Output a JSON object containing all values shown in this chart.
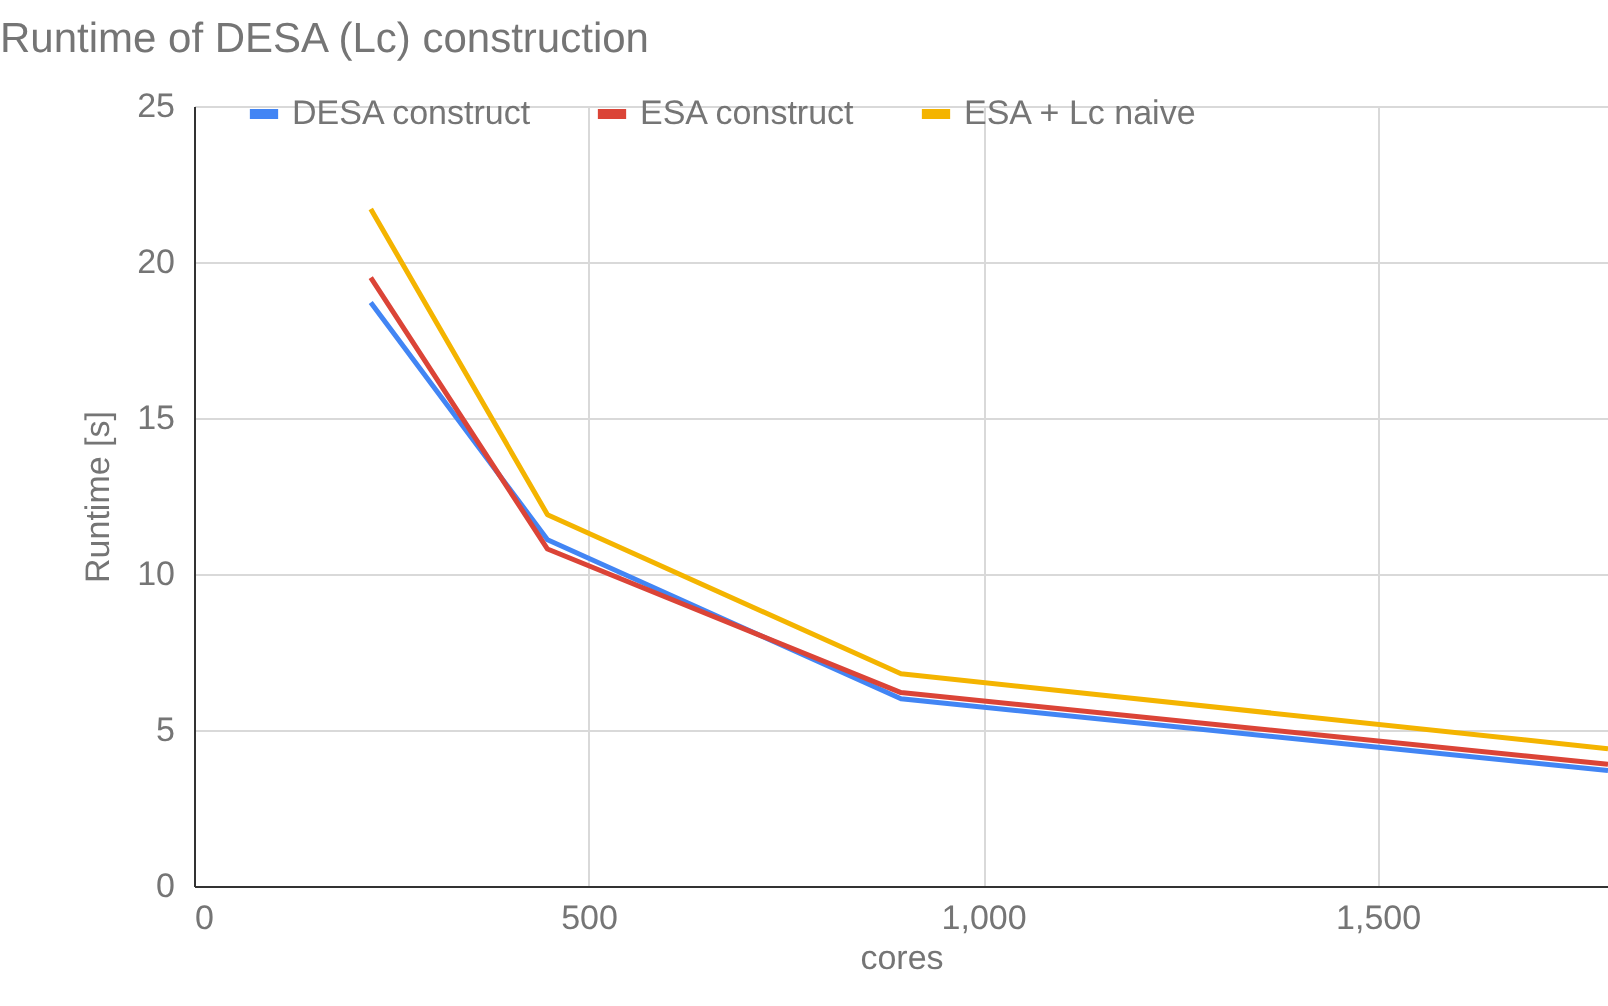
{
  "chart_data": {
    "type": "line",
    "title": "Runtime of DESA (Lc) construction",
    "xlabel": "cores",
    "ylabel": "Runtime [s]",
    "x": [
      224,
      448,
      896,
      1792
    ],
    "series": [
      {
        "name": "DESA construct",
        "color": "#4285f4",
        "values": [
          18.7,
          11.1,
          6.0,
          3.7
        ]
      },
      {
        "name": "ESA construct",
        "color": "#db4437",
        "values": [
          19.5,
          10.8,
          6.2,
          3.9
        ]
      },
      {
        "name": "ESA + Lc naive",
        "color": "#f4b400",
        "values": [
          21.7,
          11.9,
          6.8,
          4.4
        ]
      }
    ],
    "xlim": [
      0,
      1792
    ],
    "xticks": [
      0,
      500,
      {
        "value": 1000,
        "label": "1,000"
      },
      {
        "value": 1500,
        "label": "1,500"
      }
    ],
    "ylim": [
      0,
      25
    ],
    "yticks": [
      0,
      5,
      10,
      15,
      20,
      25
    ],
    "grid": true,
    "legend": "top",
    "marker": "none",
    "line_style": "solid"
  }
}
